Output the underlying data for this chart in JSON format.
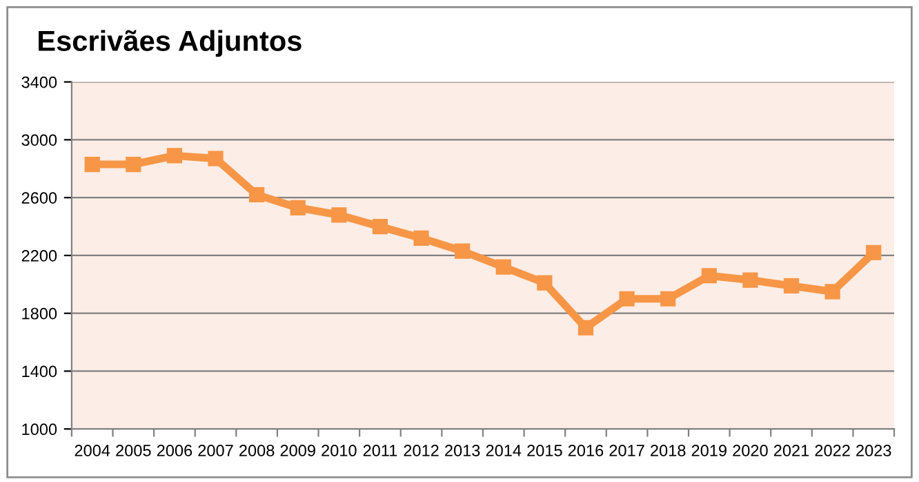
{
  "chart_data": {
    "type": "line",
    "title": "Escrivães Adjuntos",
    "categories": [
      "2004",
      "2005",
      "2006",
      "2007",
      "2008",
      "2009",
      "2010",
      "2011",
      "2012",
      "2013",
      "2014",
      "2015",
      "2016",
      "2017",
      "2018",
      "2019",
      "2020",
      "2021",
      "2022",
      "2023"
    ],
    "series": [
      {
        "color": "#f79646",
        "values": [
          2830,
          2830,
          2890,
          2870,
          2620,
          2530,
          2480,
          2400,
          2320,
          2230,
          2120,
          2010,
          1700,
          1900,
          1900,
          2060,
          2030,
          1990,
          1950,
          2220
        ]
      }
    ],
    "ylim": [
      1000,
      3400
    ],
    "yticks": [
      1000,
      1400,
      1800,
      2200,
      2600,
      3000,
      3400
    ],
    "grid": "y",
    "marker": "square",
    "line_style": "solid",
    "legend": false
  }
}
